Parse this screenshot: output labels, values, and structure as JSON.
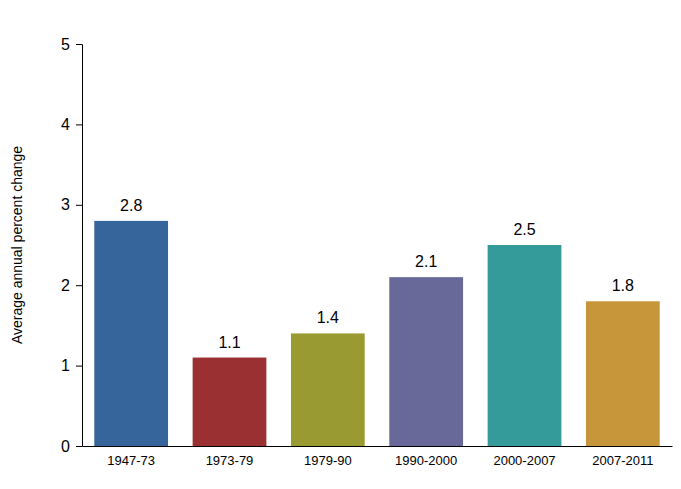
{
  "chart_data": {
    "type": "bar",
    "y_label": "Average annual percent change",
    "categories": [
      "1947-73",
      "1973-79",
      "1979-90",
      "1990-2000",
      "2000-2007",
      "2007-2011"
    ],
    "values": [
      2.8,
      1.1,
      1.4,
      2.1,
      2.5,
      1.8
    ],
    "colors": [
      "#35659a",
      "#9b3032",
      "#9a9a32",
      "#686999",
      "#349b9a",
      "#c8963a"
    ],
    "ylim": [
      0,
      5
    ],
    "yticks": [
      0,
      1,
      2,
      3,
      4,
      5
    ],
    "grid": false,
    "data_labels": true
  }
}
